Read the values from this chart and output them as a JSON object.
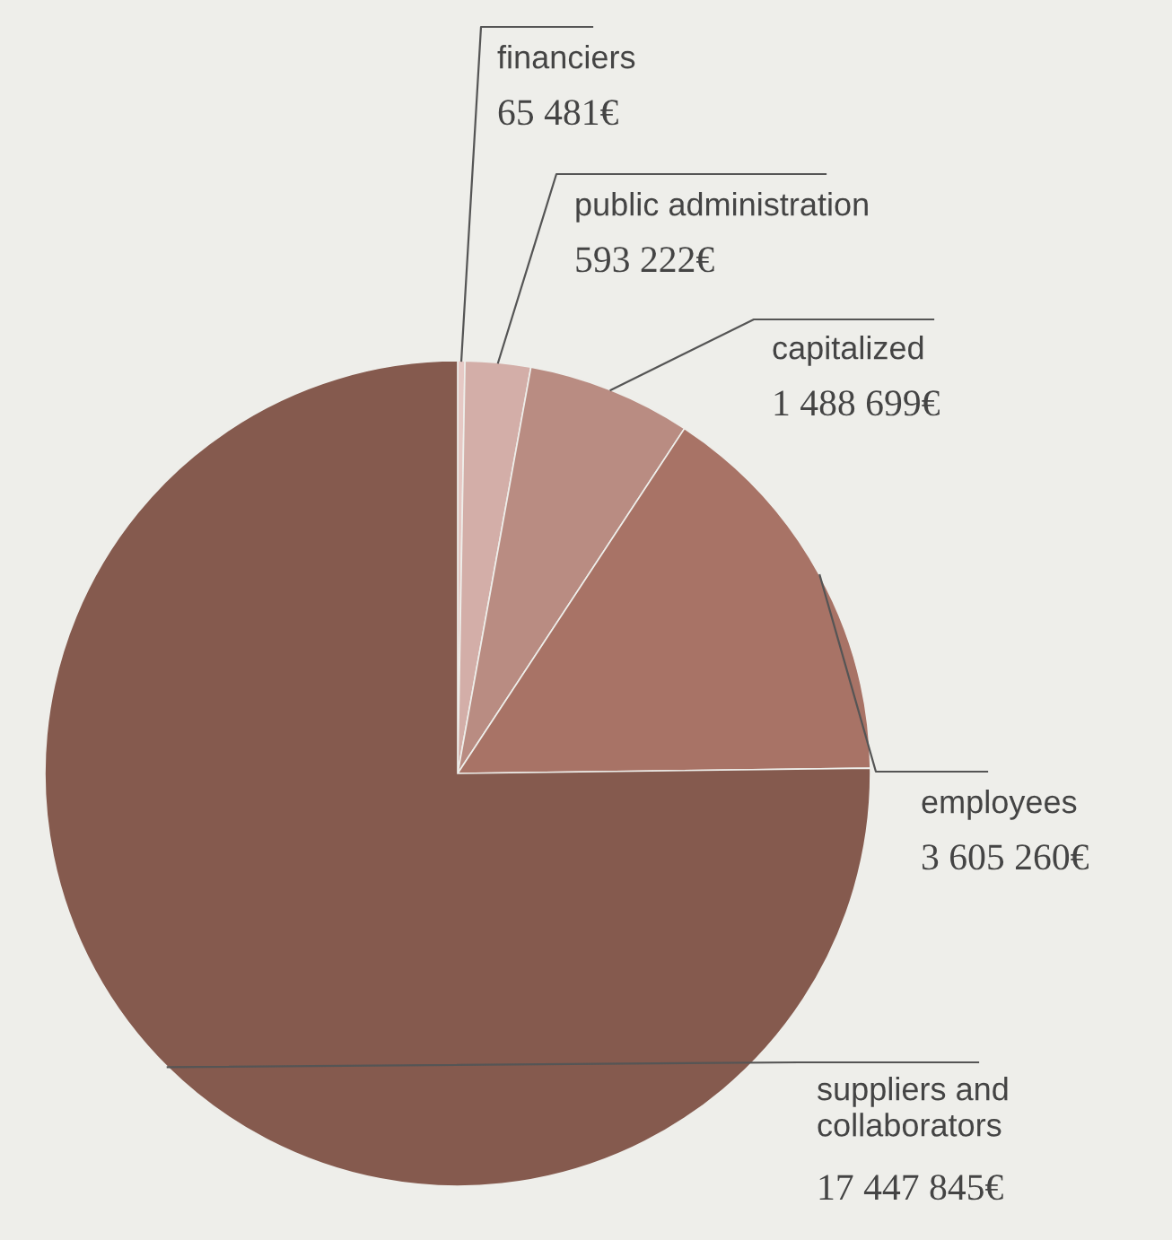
{
  "chart_data": {
    "type": "pie",
    "categories": [
      "financiers",
      "public administration",
      "capitalized",
      "employees",
      "suppliers and\ncollaborators"
    ],
    "values": [
      65481,
      593222,
      1488699,
      3605260,
      17447845
    ],
    "value_labels": [
      "65 481€",
      "593 222€",
      "1 488 699€",
      "3 605 260€",
      "17 447 845€"
    ],
    "colors": [
      "#e6c9c5",
      "#d3aea8",
      "#b98c82",
      "#a87366",
      "#855a4e"
    ],
    "legend": false
  }
}
